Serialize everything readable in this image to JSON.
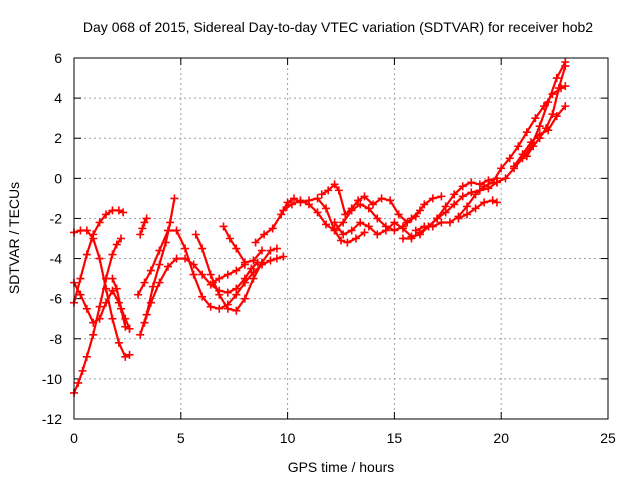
{
  "chart_data": {
    "type": "scatter",
    "title": "Day 068 of 2015, Sidereal Day-to-day VTEC variation (SDTVAR) for receiver hob2",
    "xlabel": "GPS time / hours",
    "ylabel": "SDTVAR / TECUs",
    "xlim": [
      0,
      25
    ],
    "ylim": [
      -12,
      6
    ],
    "xticks": [
      0,
      5,
      10,
      15,
      20,
      25
    ],
    "yticks": [
      -12,
      -10,
      -8,
      -6,
      -4,
      -2,
      0,
      2,
      4,
      6
    ],
    "grid": true,
    "marker": "plus",
    "color": "#ff0000",
    "series": [
      {
        "x": [
          0.0,
          0.3,
          0.6,
          0.9,
          1.2,
          1.5,
          1.8,
          2.1,
          2.4,
          2.6
        ],
        "y": [
          -2.7,
          -2.6,
          -2.6,
          -3.0,
          -4.0,
          -5.5,
          -7.0,
          -8.2,
          -8.9,
          -8.8
        ]
      },
      {
        "x": [
          0.0,
          0.3,
          0.6,
          0.9,
          1.2,
          1.5,
          1.8,
          2.1,
          2.3
        ],
        "y": [
          -6.2,
          -5.0,
          -3.8,
          -2.8,
          -2.2,
          -1.8,
          -1.6,
          -1.6,
          -1.7
        ]
      },
      {
        "x": [
          0.0,
          0.3,
          0.6,
          0.9,
          1.2,
          1.5,
          1.8,
          2.1,
          2.4,
          2.6
        ],
        "y": [
          -5.2,
          -5.8,
          -6.5,
          -7.2,
          -7.0,
          -6.2,
          -5.6,
          -6.2,
          -7.0,
          -7.5
        ]
      },
      {
        "x": [
          0.0,
          0.2,
          0.4,
          0.6,
          0.9,
          1.2,
          1.5,
          1.8,
          2.0,
          2.2
        ],
        "y": [
          -10.7,
          -10.2,
          -9.6,
          -8.9,
          -7.8,
          -6.4,
          -5.0,
          -3.8,
          -3.3,
          -3.0
        ]
      },
      {
        "x": [
          1.8,
          2.0,
          2.2,
          2.4,
          2.6
        ],
        "y": [
          -5.0,
          -5.5,
          -6.5,
          -7.4,
          -7.5
        ]
      },
      {
        "x": [
          3.1,
          3.2,
          3.3,
          3.4
        ],
        "y": [
          -2.8,
          -2.5,
          -2.2,
          -2.0
        ]
      },
      {
        "x": [
          3.1,
          3.4,
          3.7,
          4.0,
          4.3,
          4.5,
          4.7
        ],
        "y": [
          -7.8,
          -6.8,
          -5.4,
          -4.3,
          -3.2,
          -2.2,
          -1.0
        ]
      },
      {
        "x": [
          3.3,
          3.6,
          4.0,
          4.4,
          4.8,
          5.2,
          5.6,
          6.0,
          6.4,
          6.8,
          7.2,
          7.6,
          8.0,
          8.3,
          8.6
        ],
        "y": [
          -7.2,
          -6.2,
          -5.2,
          -4.4,
          -4.0,
          -4.0,
          -4.3,
          -4.8,
          -5.3,
          -5.6,
          -5.7,
          -5.5,
          -5.0,
          -4.5,
          -4.2
        ]
      },
      {
        "x": [
          3.0,
          3.3,
          3.6,
          4.0,
          4.4,
          4.8,
          5.2,
          5.6,
          6.0,
          6.4,
          6.8,
          7.2,
          7.6,
          8.0,
          8.4,
          8.8,
          9.2,
          9.5,
          9.8
        ],
        "y": [
          -5.8,
          -5.2,
          -4.6,
          -3.6,
          -2.6,
          -2.6,
          -3.5,
          -4.8,
          -5.9,
          -6.4,
          -6.5,
          -6.3,
          -5.8,
          -5.2,
          -4.7,
          -4.3,
          -4.1,
          -4.0,
          -3.9
        ]
      },
      {
        "x": [
          5.7,
          6.0,
          6.4,
          6.8,
          7.2,
          7.6,
          8.0,
          8.4,
          8.8,
          9.2,
          9.5
        ],
        "y": [
          -2.8,
          -3.5,
          -4.8,
          -5.8,
          -6.5,
          -6.6,
          -6.0,
          -5.0,
          -4.2,
          -3.6,
          -3.5
        ]
      },
      {
        "x": [
          6.5,
          6.8,
          7.2,
          7.6,
          8.0
        ],
        "y": [
          -5.2,
          -5.0,
          -4.8,
          -4.6,
          -4.3
        ]
      },
      {
        "x": [
          7.0,
          7.3,
          7.6,
          8.0,
          8.4,
          8.8
        ],
        "y": [
          -2.4,
          -3.0,
          -3.5,
          -4.2,
          -4.1,
          -3.6
        ]
      },
      {
        "x": [
          8.5,
          8.9,
          9.3,
          9.7,
          10.0,
          10.3,
          10.6,
          11.0,
          11.4,
          11.8,
          12.2,
          12.5,
          12.8,
          13.2,
          13.6
        ],
        "y": [
          -3.2,
          -2.8,
          -2.5,
          -1.8,
          -1.2,
          -1.0,
          -1.2,
          -1.1,
          -1.0,
          -1.5,
          -2.6,
          -3.1,
          -3.2,
          -3.0,
          -2.7
        ]
      },
      {
        "x": [
          9.8,
          10.2,
          10.6,
          11.0,
          11.4,
          11.8,
          12.2,
          12.6,
          13.0,
          13.4,
          13.8,
          14.2,
          14.6,
          15.0,
          15.4,
          15.8,
          16.2
        ],
        "y": [
          -1.6,
          -1.3,
          -1.1,
          -1.3,
          -1.7,
          -2.3,
          -2.6,
          -2.2,
          -1.6,
          -1.3,
          -1.5,
          -2.0,
          -2.4,
          -2.6,
          -2.4,
          -2.0,
          -1.6
        ]
      },
      {
        "x": [
          11.6,
          11.9,
          12.2,
          12.4,
          12.7,
          13.0,
          13.3,
          13.6,
          14.0,
          14.4,
          14.8,
          15.2,
          15.6,
          16.0,
          16.4,
          16.8,
          17.2
        ],
        "y": [
          -0.8,
          -0.6,
          -0.3,
          -0.6,
          -1.8,
          -1.5,
          -1.1,
          -0.9,
          -1.3,
          -1.0,
          -1.1,
          -1.8,
          -2.2,
          -1.9,
          -1.3,
          -1.0,
          -0.9
        ]
      },
      {
        "x": [
          12.2,
          12.6,
          13.0,
          13.4,
          13.8,
          14.2,
          14.6,
          15.0,
          15.4,
          15.8,
          16.2,
          16.6,
          17.0,
          17.4,
          17.8,
          18.2,
          18.6,
          19.0,
          19.4,
          19.8
        ],
        "y": [
          -2.2,
          -2.8,
          -2.6,
          -2.2,
          -2.4,
          -2.8,
          -2.6,
          -2.2,
          -2.5,
          -2.9,
          -2.8,
          -2.4,
          -2.0,
          -1.7,
          -1.3,
          -0.9,
          -0.7,
          -0.6,
          -0.5,
          -0.2
        ]
      },
      {
        "x": [
          15.4,
          15.8,
          16.2,
          16.6,
          17.0,
          17.4,
          17.8,
          18.2,
          18.6,
          19.0,
          19.4,
          19.8
        ],
        "y": [
          -3.0,
          -3.0,
          -2.7,
          -2.4,
          -2.0,
          -1.4,
          -0.8,
          -0.4,
          -0.2,
          -0.3,
          -0.1,
          0.0
        ]
      },
      {
        "x": [
          16.0,
          16.4,
          16.8,
          17.2,
          17.6,
          18.0,
          18.4,
          18.8,
          19.2,
          19.6,
          20.0,
          20.4,
          20.8,
          21.2,
          21.6,
          22.0,
          22.4,
          22.8,
          23.0
        ],
        "y": [
          -2.6,
          -2.4,
          -2.4,
          -2.2,
          -2.2,
          -1.9,
          -1.4,
          -0.8,
          -0.4,
          -0.2,
          0.5,
          1.0,
          1.6,
          2.3,
          3.0,
          3.6,
          4.2,
          4.5,
          4.6
        ]
      },
      {
        "x": [
          18.0,
          18.4,
          18.8,
          19.2,
          19.6,
          19.8
        ],
        "y": [
          -2.0,
          -1.8,
          -1.5,
          -1.2,
          -1.1,
          -1.2
        ]
      },
      {
        "x": [
          19.8,
          20.2,
          20.6,
          21.0,
          21.4,
          21.8,
          22.2,
          22.6,
          23.0
        ],
        "y": [
          -0.2,
          0.0,
          0.5,
          1.0,
          1.6,
          2.6,
          3.8,
          5.0,
          5.8
        ]
      },
      {
        "x": [
          20.6,
          21.0,
          21.4,
          21.8,
          22.2,
          22.6,
          23.0
        ],
        "y": [
          0.6,
          1.2,
          1.8,
          2.2,
          2.4,
          3.1,
          3.6
        ]
      },
      {
        "x": [
          21.2,
          21.5,
          21.8,
          22.1,
          22.4,
          22.7,
          23.0
        ],
        "y": [
          1.1,
          1.6,
          2.0,
          2.5,
          3.2,
          4.5,
          5.6
        ]
      }
    ]
  }
}
